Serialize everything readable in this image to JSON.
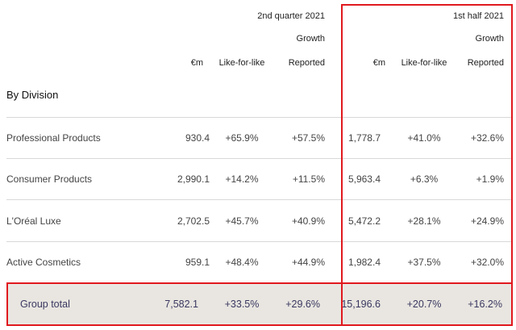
{
  "header": {
    "period_q2": "2nd quarter 2021",
    "period_h1": "1st half 2021",
    "growth_label": "Growth",
    "columns": [
      "€m",
      "Like-for-like",
      "Reported"
    ]
  },
  "section_title": "By Division",
  "rows": [
    {
      "label": "Professional Products",
      "q2_em": "930.4",
      "q2_lfl": "+65.9%",
      "q2_rep": "+57.5%",
      "h1_em": "1,778.7",
      "h1_lfl": "+41.0%",
      "h1_rep": "+32.6%"
    },
    {
      "label": "Consumer Products",
      "q2_em": "2,990.1",
      "q2_lfl": "+14.2%",
      "q2_rep": "+11.5%",
      "h1_em": "5,963.4",
      "h1_lfl": "+6.3%",
      "h1_rep": "+1.9%"
    },
    {
      "label": "L'Oréal Luxe",
      "q2_em": "2,702.5",
      "q2_lfl": "+45.7%",
      "q2_rep": "+40.9%",
      "h1_em": "5,472.2",
      "h1_lfl": "+28.1%",
      "h1_rep": "+24.9%"
    },
    {
      "label": "Active Cosmetics",
      "q2_em": "959.1",
      "q2_lfl": "+48.4%",
      "q2_rep": "+44.9%",
      "h1_em": "1,982.4",
      "h1_lfl": "+37.5%",
      "h1_rep": "+32.0%"
    }
  ],
  "total": {
    "label": "Group total",
    "q2_em": "7,582.1",
    "q2_lfl": "+33.5%",
    "q2_rep": "+29.6%",
    "h1_em": "15,196.6",
    "h1_lfl": "+20.7%",
    "h1_rep": "+16.2%"
  },
  "colors": {
    "highlight": "#e0191e",
    "total_bg": "#e9e6e1",
    "total_text": "#3a3860"
  }
}
